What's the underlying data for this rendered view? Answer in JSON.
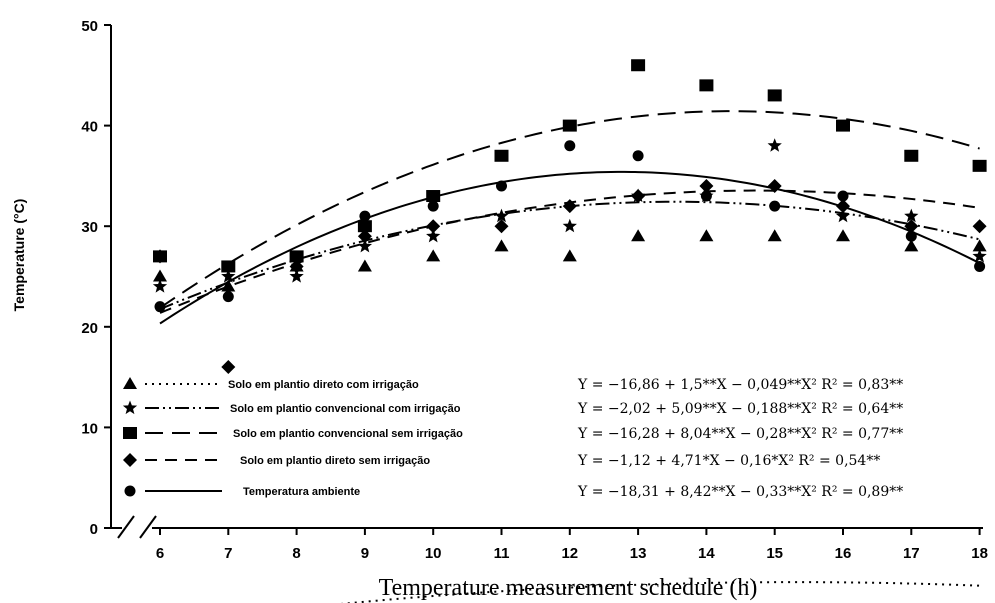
{
  "chart_data": {
    "type": "scatter",
    "xlabel": "Temperature measurement schedule (h)",
    "ylabel": "Temperature (°C)",
    "xlim": [
      6,
      18
    ],
    "ylim": [
      0,
      50
    ],
    "xticks": [
      "6",
      "7",
      "8",
      "9",
      "10",
      "11",
      "12",
      "13",
      "14",
      "15",
      "16",
      "17",
      "18"
    ],
    "yticks": [
      "0",
      "10",
      "20",
      "30",
      "40",
      "50"
    ],
    "grid": false,
    "legend_position": "bottom-left",
    "series": [
      {
        "name": "Solo em plantio direto com irrigação",
        "marker": "triangle",
        "line": "dotted",
        "x": [
          6,
          7,
          8,
          9,
          10,
          11,
          12,
          13,
          14,
          15,
          16,
          17,
          18
        ],
        "y": [
          25,
          24,
          26,
          26,
          27,
          28,
          27,
          29,
          29,
          29,
          29,
          28,
          28
        ],
        "equation": "Y = −16,86 + 1,5**X − 0,049**X²   R² = 0,83**",
        "fit": [
          -16.86,
          1.5,
          -0.049
        ]
      },
      {
        "name": "Solo em plantio convencional com irrigação",
        "marker": "star",
        "line": "dash-dot-dot",
        "x": [
          6,
          7,
          8,
          9,
          10,
          11,
          12,
          13,
          14,
          15,
          16,
          17,
          18
        ],
        "y": [
          24,
          25,
          25,
          28,
          29,
          31,
          30,
          33,
          33,
          38,
          31,
          31,
          27
        ],
        "equation": "Y = −2,02 + 5,09**X − 0,188**X²   R² = 0,64**",
        "fit": [
          -2.02,
          5.09,
          -0.188
        ]
      },
      {
        "name": "Solo em plantio convencional sem irrigação",
        "marker": "square",
        "line": "long-dash",
        "x": [
          6,
          7,
          8,
          9,
          10,
          11,
          12,
          13,
          14,
          15,
          16,
          17,
          18
        ],
        "y": [
          27,
          26,
          27,
          30,
          33,
          37,
          40,
          46,
          44,
          43,
          40,
          37,
          36
        ],
        "equation": "Y = −16,28 + 8,04**X − 0,28**X²   R² = 0,77**",
        "fit": [
          -16.28,
          8.04,
          -0.28
        ]
      },
      {
        "name": "Solo em plantio direto sem irrigação",
        "marker": "diamond",
        "line": "dash",
        "x": [
          6,
          7,
          8,
          9,
          10,
          11,
          12,
          13,
          14,
          15,
          16,
          17,
          18
        ],
        "y": [
          27,
          16,
          26,
          29,
          30,
          30,
          32,
          33,
          34,
          34,
          32,
          30,
          30
        ],
        "equation": "Y = −1,12 + 4,71*X − 0,16*X²   R² = 0,54**",
        "fit": [
          -1.12,
          4.71,
          -0.16
        ]
      },
      {
        "name": "Temperatura ambiente",
        "marker": "circle",
        "line": "solid",
        "x": [
          6,
          7,
          8,
          9,
          10,
          11,
          12,
          13,
          14,
          15,
          16,
          17,
          18
        ],
        "y": [
          22,
          23,
          27,
          31,
          32,
          34,
          38,
          37,
          33,
          32,
          33,
          29,
          26
        ],
        "equation": "Y = −18,31 + 8,42**X − 0,33**X²   R² = 0,89**",
        "fit": [
          -18.31,
          8.42,
          -0.33
        ]
      }
    ]
  }
}
